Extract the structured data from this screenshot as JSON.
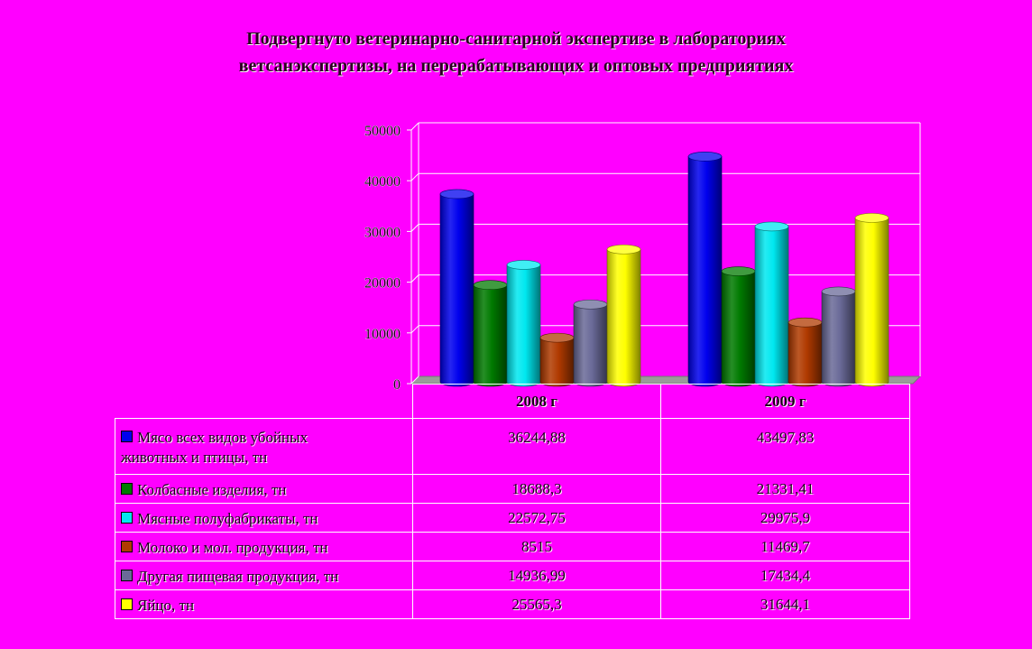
{
  "chart_data": {
    "type": "bar",
    "title_lines": [
      "Подвергнуто ветеринарно-санитарной экспертизе в лабораториях",
      "ветсанэкспертизы, на перерабатывающих и оптовых предприятиях"
    ],
    "categories": [
      "2008 г",
      "2009 г"
    ],
    "ylim": [
      0,
      50000
    ],
    "yticks": [
      "0",
      "10000",
      "20000",
      "30000",
      "40000",
      "50000"
    ],
    "grid": true,
    "style": "3d-cylinder",
    "series": [
      {
        "name": "Мясо всех видов убойных животных и птицы, тн",
        "name_lines": [
          "Мясо всех видов убойных",
          "животных и птицы, тн"
        ],
        "color": "#0000ee",
        "values": [
          36244.88,
          43497.83
        ],
        "display": [
          "36244,88",
          "43497,83"
        ]
      },
      {
        "name": "Колбасные изделия, тн",
        "name_lines": [
          "Колбасные изделия, тн"
        ],
        "color": "#007a00",
        "values": [
          18688.3,
          21331.41
        ],
        "display": [
          "18688,3",
          "21331,41"
        ]
      },
      {
        "name": "Мясные полуфабрикаты, тн",
        "name_lines": [
          "Мясные полуфабрикаты, тн"
        ],
        "color": "#00e8f0",
        "values": [
          22572.75,
          29975.9
        ],
        "display": [
          "22572,75",
          "29975,9"
        ]
      },
      {
        "name": "Молоко и мол. продукция, тн",
        "name_lines": [
          "Молоко и мол. продукция, тн"
        ],
        "color": "#b03a00",
        "values": [
          8515,
          11469.7
        ],
        "display": [
          "8515",
          "11469,7"
        ]
      },
      {
        "name": "Другая пищевая продукция, тн",
        "name_lines": [
          "Другая пищевая продукция, тн"
        ],
        "color": "#6a6a98",
        "values": [
          14936.99,
          17434.4
        ],
        "display": [
          "14936,99",
          "17434,4"
        ]
      },
      {
        "name": "Яйцо, тн",
        "name_lines": [
          "Яйцо, тн"
        ],
        "color": "#ffff00",
        "values": [
          25565.3,
          31644.1
        ],
        "display": [
          "25565,3",
          "31644,1"
        ]
      }
    ]
  }
}
